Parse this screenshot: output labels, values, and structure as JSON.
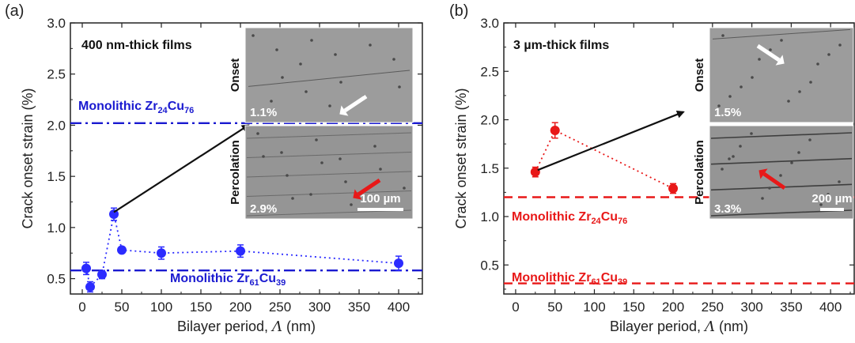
{
  "chart_data": [
    {
      "type": "scatter",
      "panel_label": "(a)",
      "title": "400 nm-thick films",
      "xlabel_prefix": "Bilayer period, ",
      "xlabel_symbol": "Λ",
      "xlabel_unit": " (nm)",
      "ylabel": "Crack onset strain (%)",
      "xlim": [
        -15,
        430
      ],
      "ylim": [
        0.35,
        3.0
      ],
      "xticks": [
        "0",
        "50",
        "100",
        "150",
        "200",
        "250",
        "300",
        "350",
        "400"
      ],
      "yticks": [
        "0.5",
        "1.0",
        "1.5",
        "2.0",
        "2.5",
        "3.0"
      ],
      "color": "#2b2bff",
      "series": [
        {
          "x": [
            5,
            10,
            25,
            40,
            50,
            100,
            200,
            400
          ],
          "y": [
            0.6,
            0.42,
            0.54,
            1.13,
            0.78,
            0.75,
            0.77,
            0.65
          ],
          "err": [
            0.06,
            0.05,
            0.04,
            0.06,
            0.03,
            0.06,
            0.06,
            0.07
          ]
        }
      ],
      "reference_lines": [
        {
          "y": 2.02,
          "label_main": "Monolithic Zr",
          "sub1": "24",
          "mid": "Cu",
          "sub2": "76",
          "style": "dashdot",
          "color": "#1a1ad0"
        },
        {
          "y": 0.58,
          "label_main": "Monolithic Zr",
          "sub1": "61",
          "mid": "Cu",
          "sub2": "39",
          "style": "dashdot",
          "color": "#1a1ad0"
        }
      ],
      "arrow": {
        "from": [
          40,
          1.15
        ],
        "to": [
          210,
          2.0
        ]
      },
      "insets": [
        {
          "side_label": "Onset",
          "value": "1.1%",
          "arrow_color": "#ffffff"
        },
        {
          "side_label": "Percolation",
          "value": "2.9%",
          "arrow_color": "#e81818",
          "scale_bar": "100 µm"
        }
      ]
    },
    {
      "type": "scatter",
      "panel_label": "(b)",
      "title": "3 µm-thick films",
      "xlabel_prefix": "Bilayer period, ",
      "xlabel_symbol": "Λ",
      "xlabel_unit": " (nm)",
      "ylabel": "Crack onset strain (%)",
      "xlim": [
        -15,
        430
      ],
      "ylim": [
        0.2,
        3.0
      ],
      "xticks": [
        "0",
        "50",
        "100",
        "150",
        "200",
        "250",
        "300",
        "350",
        "400"
      ],
      "yticks": [
        "0.5",
        "1.0",
        "1.5",
        "2.0",
        "2.5",
        "3.0"
      ],
      "color": "#e81818",
      "series": [
        {
          "x": [
            25,
            50,
            200
          ],
          "y": [
            1.46,
            1.89,
            1.29
          ],
          "err": [
            0.05,
            0.08,
            0.05
          ]
        }
      ],
      "reference_lines": [
        {
          "y": 1.2,
          "label_main": "Monolithic Zr",
          "sub1": "24",
          "mid": "Cu",
          "sub2": "76",
          "style": "dash",
          "color": "#e81818"
        },
        {
          "y": 0.31,
          "label_main": "Monolithic Zr",
          "sub1": "61",
          "mid": "Cu",
          "sub2": "39",
          "style": "dash",
          "color": "#e81818"
        }
      ],
      "arrow": {
        "from": [
          28,
          1.48
        ],
        "to": [
          213,
          2.08
        ]
      },
      "insets": [
        {
          "side_label": "Onset",
          "value": "1.5%",
          "arrow_color": "#ffffff"
        },
        {
          "side_label": "Percolation",
          "value": "3.3%",
          "arrow_color": "#e81818",
          "scale_bar": "200 µm"
        }
      ]
    }
  ]
}
